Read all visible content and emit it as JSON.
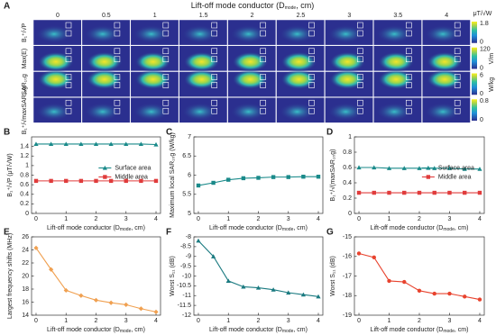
{
  "panel_a": {
    "label": "A",
    "title": {
      "text": "Lift-off mode conductor (D",
      "sub": "mode",
      "after": ", cm)"
    },
    "columns": [
      "0",
      "0.5",
      "1",
      "1.5",
      "2",
      "2.5",
      "3",
      "3.5",
      "4"
    ],
    "rows": [
      {
        "label": "B₁⁺/√P",
        "max": "1.8",
        "min": "0",
        "unit": "μT/√W"
      },
      {
        "label": "Max(E)",
        "max": "120",
        "min": "0",
        "unit": "V/m"
      },
      {
        "label": "SAR₁₀g",
        "max": "6",
        "min": "0",
        "unit": "W/kg"
      },
      {
        "label": "B₁⁺/√maxSAR₁₀g",
        "max": "0.8",
        "min": "0"
      }
    ]
  },
  "chart_data": [
    {
      "type": "line",
      "label": "B",
      "ylabel": "B₁⁺/√P (μT/√W)",
      "xlabel": {
        "text": "Lift-off mode conductor (D",
        "sub": "mode",
        "after": ", cm)"
      },
      "x": [
        0,
        0.5,
        1,
        1.5,
        2,
        2.5,
        3,
        3.5,
        4
      ],
      "xlim": [
        -0.15,
        4.15
      ],
      "xticks": [
        0,
        1,
        2,
        3,
        4
      ],
      "ylim": [
        0,
        1.6
      ],
      "yticks": [
        0,
        0.2,
        0.4,
        0.6,
        0.8,
        1,
        1.2,
        1.4
      ],
      "legend": "center right",
      "series": [
        {
          "name": "Surface area",
          "color": "#1a8a8a",
          "marker": "triangle",
          "values": [
            1.45,
            1.45,
            1.45,
            1.45,
            1.45,
            1.45,
            1.45,
            1.45,
            1.44
          ]
        },
        {
          "name": "Middle area",
          "color": "#e03c3c",
          "marker": "square",
          "values": [
            0.68,
            0.68,
            0.68,
            0.68,
            0.68,
            0.68,
            0.68,
            0.68,
            0.68
          ]
        }
      ]
    },
    {
      "type": "line",
      "label": "C",
      "ylabel": "Maximum local SAR₁₀g (W/kg)",
      "xlabel": {
        "text": "Lift-off mode conductor (D",
        "sub": "mode",
        "after": ", cm)"
      },
      "x": [
        0,
        0.5,
        1,
        1.5,
        2,
        2.5,
        3,
        3.5,
        4
      ],
      "xlim": [
        -0.15,
        4.15
      ],
      "xticks": [
        0,
        1,
        2,
        3,
        4
      ],
      "ylim": [
        5,
        7
      ],
      "yticks": [
        5,
        5.5,
        6,
        6.5,
        7
      ],
      "series": [
        {
          "color": "#1a8a8a",
          "marker": "square",
          "values": [
            5.73,
            5.8,
            5.88,
            5.92,
            5.93,
            5.95,
            5.95,
            5.96,
            5.96
          ]
        }
      ]
    },
    {
      "type": "line",
      "label": "D",
      "ylabel": "B₁⁺/√(maxSAR₁₀g)",
      "xlabel": {
        "text": "Lift-off mode conductor (D",
        "sub": "mode",
        "after": ", cm)"
      },
      "x": [
        0,
        0.5,
        1,
        1.5,
        2,
        2.5,
        3,
        3.5,
        4
      ],
      "xlim": [
        -0.15,
        4.15
      ],
      "xticks": [
        0,
        1,
        2,
        3,
        4
      ],
      "ylim": [
        0,
        1
      ],
      "yticks": [
        0,
        0.2,
        0.4,
        0.6,
        0.8,
        1
      ],
      "legend": "center right",
      "series": [
        {
          "name": "Surface area",
          "color": "#1a8a8a",
          "marker": "triangle",
          "values": [
            0.6,
            0.6,
            0.59,
            0.59,
            0.59,
            0.59,
            0.59,
            0.58,
            0.58
          ]
        },
        {
          "name": "Middle area",
          "color": "#e03c3c",
          "marker": "square",
          "values": [
            0.27,
            0.27,
            0.27,
            0.27,
            0.27,
            0.27,
            0.27,
            0.27,
            0.27
          ]
        }
      ]
    },
    {
      "type": "line",
      "label": "E",
      "ylabel": "Largest frequency shifts (MHz)",
      "xlabel": {
        "text": "Lift-off mode conductor (D",
        "sub": "mode",
        "after": ", cm)"
      },
      "x": [
        0,
        0.5,
        1,
        1.5,
        2,
        2.5,
        3,
        3.5,
        4
      ],
      "xlim": [
        -0.15,
        4.15
      ],
      "xticks": [
        0,
        1,
        2,
        3,
        4
      ],
      "ylim": [
        14,
        26
      ],
      "yticks": [
        14,
        16,
        18,
        20,
        22,
        24,
        26
      ],
      "series": [
        {
          "color": "#f0a050",
          "marker": "diamond",
          "values": [
            24.3,
            21,
            17.8,
            17,
            16.3,
            15.9,
            15.6,
            15,
            14.5
          ]
        }
      ]
    },
    {
      "type": "line",
      "label": "F",
      "ylabel": "Worst S₁₁ (dB)",
      "xlabel": {
        "text": "Lift-off mode conductor (D",
        "sub": "mode",
        "after": ", cm)"
      },
      "x": [
        0,
        0.5,
        1,
        1.5,
        2,
        2.5,
        3,
        3.5,
        4
      ],
      "xlim": [
        -0.15,
        4.15
      ],
      "xticks": [
        0,
        1,
        2,
        3,
        4
      ],
      "ylim": [
        -12,
        -8
      ],
      "yticks": [
        -12,
        -11.5,
        -11,
        -10.5,
        -10,
        -9.5,
        -9,
        -8.5,
        -8
      ],
      "series": [
        {
          "color": "#1a7a80",
          "marker": "triangle",
          "values": [
            -8.2,
            -9,
            -10.25,
            -10.55,
            -10.6,
            -10.7,
            -10.85,
            -10.95,
            -11.05
          ]
        }
      ]
    },
    {
      "type": "line",
      "label": "G",
      "ylabel": "Worst S₁₁ (dB)",
      "xlabel": {
        "text": "Lift-off mode conductor (D",
        "sub": "mode",
        "after": ", cm)"
      },
      "x": [
        0,
        0.5,
        1,
        1.5,
        2,
        2.5,
        3,
        3.5,
        4
      ],
      "xlim": [
        -0.15,
        4.15
      ],
      "xticks": [
        0,
        1,
        2,
        3,
        4
      ],
      "ylim": [
        -19,
        -15
      ],
      "yticks": [
        -19,
        -18,
        -17,
        -16,
        -15
      ],
      "series": [
        {
          "color": "#e8432e",
          "marker": "circle",
          "values": [
            -15.85,
            -16.05,
            -17.25,
            -17.3,
            -17.75,
            -17.9,
            -17.9,
            -18.05,
            -18.2
          ]
        }
      ]
    }
  ]
}
